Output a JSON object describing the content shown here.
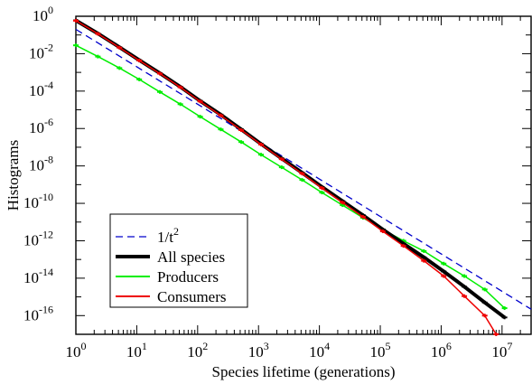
{
  "chart_data": {
    "type": "line",
    "xlabel": "Species lifetime (generations)",
    "ylabel": "Histograms",
    "x_scale": "log",
    "y_scale": "log",
    "xlim": [
      1,
      30000000
    ],
    "ylim": [
      1e-17,
      1
    ],
    "grid": false,
    "legend_position": "lower-left",
    "x_ticks": [
      {
        "value": 1,
        "base": "10",
        "exp": "0"
      },
      {
        "value": 10,
        "base": "10",
        "exp": "1"
      },
      {
        "value": 100,
        "base": "10",
        "exp": "2"
      },
      {
        "value": 1000,
        "base": "10",
        "exp": "3"
      },
      {
        "value": 10000,
        "base": "10",
        "exp": "4"
      },
      {
        "value": 100000,
        "base": "10",
        "exp": "5"
      },
      {
        "value": 1000000,
        "base": "10",
        "exp": "6"
      },
      {
        "value": 10000000,
        "base": "10",
        "exp": "7"
      }
    ],
    "y_ticks": [
      {
        "value": 1,
        "base": "10",
        "exp": "0"
      },
      {
        "value": 0.01,
        "base": "10",
        "exp": "-2"
      },
      {
        "value": 0.0001,
        "base": "10",
        "exp": "-4"
      },
      {
        "value": 1e-06,
        "base": "10",
        "exp": "-6"
      },
      {
        "value": 1e-08,
        "base": "10",
        "exp": "-8"
      },
      {
        "value": 1e-10,
        "base": "10",
        "exp": "-10"
      },
      {
        "value": 1e-12,
        "base": "10",
        "exp": "-12"
      },
      {
        "value": 1e-14,
        "base": "10",
        "exp": "-14"
      },
      {
        "value": 1e-16,
        "base": "10",
        "exp": "-16"
      }
    ],
    "series": [
      {
        "name": "1/t",
        "name_sup": "2",
        "color": "#0000cc",
        "style": "dashed",
        "x": [
          1,
          30000000
        ],
        "y": [
          0.2,
          2.2e-16
        ]
      },
      {
        "name": "All species",
        "color": "#000000",
        "style": "solid-thick",
        "x": [
          1,
          2.3,
          5.2,
          11,
          24,
          52,
          110,
          240,
          520,
          1100,
          2400,
          5200,
          11000,
          24000,
          52000,
          110000,
          240000,
          520000,
          1100000,
          2400000,
          5200000,
          11000000
        ],
        "y": [
          0.6,
          0.12,
          0.022,
          0.0045,
          0.0009,
          0.00017,
          3e-05,
          5.5e-06,
          9e-07,
          1.5e-07,
          2.5e-08,
          4.3e-09,
          7.5e-10,
          1.3e-10,
          2.3e-11,
          4e-12,
          7e-13,
          1.3e-13,
          2.3e-14,
          3.5e-15,
          5e-16,
          8e-17
        ]
      },
      {
        "name": "Producers",
        "color": "#00ee00",
        "style": "solid",
        "x": [
          1,
          2.3,
          5.2,
          11,
          24,
          52,
          110,
          240,
          520,
          1100,
          2400,
          5200,
          11000,
          24000,
          52000,
          110000,
          240000,
          520000,
          1100000,
          2400000,
          5200000,
          11000000
        ],
        "y": [
          0.028,
          0.007,
          0.0017,
          0.00042,
          9e-05,
          2e-05,
          4.3e-06,
          9e-07,
          1.9e-07,
          4e-08,
          8.5e-09,
          1.8e-09,
          3.8e-10,
          8e-11,
          1.7e-11,
          4e-12,
          1e-12,
          2.8e-13,
          6e-14,
          1.3e-14,
          2.5e-15,
          2.5e-16
        ]
      },
      {
        "name": "Consumers",
        "color": "#ee0000",
        "style": "solid",
        "x": [
          1,
          2.3,
          5.2,
          11,
          24,
          52,
          110,
          240,
          520,
          1100,
          2400,
          5200,
          11000,
          24000,
          52000,
          110000,
          240000,
          520000,
          1100000,
          2400000,
          5200000,
          8000000
        ],
        "y": [
          0.58,
          0.115,
          0.021,
          0.0043,
          0.00086,
          0.00016,
          2.8e-05,
          5e-06,
          8.2e-07,
          1.4e-07,
          2.3e-08,
          3.9e-09,
          6.6e-10,
          1.1e-10,
          1.9e-11,
          3.2e-12,
          5.3e-13,
          8.5e-14,
          1.3e-14,
          1.1e-15,
          1e-16,
          1e-17
        ]
      }
    ]
  }
}
